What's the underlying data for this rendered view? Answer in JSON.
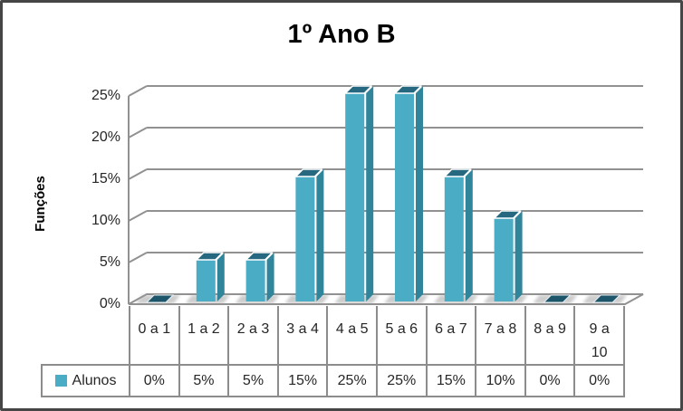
{
  "chart_data": {
    "type": "bar",
    "title": "1º Ano B",
    "ylabel": "Funções",
    "xlabel": "",
    "categories": [
      "0 a 1",
      "1 a 2",
      "2 a 3",
      "3 a 4",
      "4 a 5",
      "5 a 6",
      "6 a 7",
      "7 a 8",
      "8 a 9",
      "9 a 10"
    ],
    "series": [
      {
        "name": "Alunos",
        "values": [
          0,
          5,
          5,
          15,
          25,
          25,
          15,
          10,
          0,
          0
        ]
      }
    ],
    "value_labels": [
      "0%",
      "5%",
      "5%",
      "15%",
      "25%",
      "25%",
      "15%",
      "10%",
      "0%",
      "0%"
    ],
    "yticks": [
      0,
      5,
      10,
      15,
      20,
      25
    ],
    "ytick_labels": [
      "0%",
      "5%",
      "10%",
      "15%",
      "20%",
      "25%"
    ],
    "ylim": [
      0,
      25
    ],
    "grid": true,
    "style": "excel-3d-column",
    "legend_position": "bottom-table",
    "colors": {
      "bar_front": "#4BACC6",
      "bar_side": "#31859B",
      "bar_top": "#25687F",
      "bar_zero": "#1D566B",
      "bar_bevel": "#FFFFFF",
      "gridline": "#919191",
      "table_border": "#8C8C8C",
      "legend_swatch": "#4BACC6",
      "text": "#262626",
      "frame_border": "#464646"
    }
  }
}
